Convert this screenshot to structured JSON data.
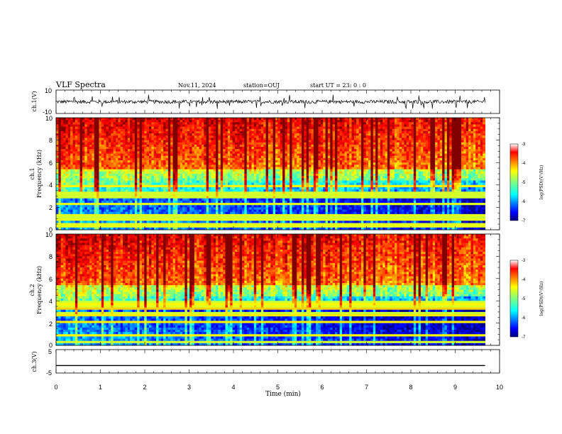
{
  "header": {
    "title": "VLF Spectra",
    "date": "Nov.11, 2024",
    "station": "station=OUJ",
    "start_time": "start  UT =   23: 0  : 0"
  },
  "chart_data": [
    {
      "type": "line",
      "panel": "ch1-waveform",
      "ylabel": "ch.1(V)",
      "ylim": [
        -10,
        10
      ],
      "y_ticks": [
        "10",
        "-10"
      ],
      "xlim": [
        0,
        10
      ],
      "description_values": {
        "baseline_v": 0,
        "typical_amplitude_v": 1.5,
        "max_spike_v": 6
      }
    },
    {
      "type": "heatmap",
      "panel": "ch1-spectrogram",
      "ylabel_top": "ch.1",
      "ylabel": "Frequency (kHz)",
      "ylim": [
        0,
        10
      ],
      "y_ticks": [
        "0",
        "2",
        "4",
        "6",
        "8",
        "10"
      ],
      "xlim": [
        0,
        9.85
      ],
      "colorbar": {
        "label": "log(PSD)(V²/Hz)",
        "range": [
          -7,
          -3
        ],
        "ticks": [
          "-3",
          "-4",
          "-5",
          "-6",
          "-7"
        ]
      }
    },
    {
      "type": "heatmap",
      "panel": "ch2-spectrogram",
      "ylabel_top": "ch.2",
      "ylabel": "Frequency (kHz)",
      "ylim": [
        0,
        10
      ],
      "y_ticks": [
        "0",
        "2",
        "4",
        "6",
        "8",
        "10"
      ],
      "xlim": [
        0,
        9.85
      ],
      "colorbar": {
        "label": "log(PSD)(V²/Hz)",
        "range": [
          -7,
          -3
        ],
        "ticks": [
          "-3",
          "-4",
          "-5",
          "-6",
          "-7"
        ]
      }
    },
    {
      "type": "line",
      "panel": "ch3-waveform",
      "ylabel": "ch.3(V)",
      "ylim": [
        -5,
        5
      ],
      "y_ticks": [
        "5",
        "-5"
      ],
      "xlim": [
        0,
        10
      ],
      "constant_value_v": -1.8
    }
  ],
  "x_axis": {
    "label": "Time (min)",
    "ticks": [
      "0",
      "1",
      "2",
      "3",
      "4",
      "5",
      "6",
      "7",
      "8",
      "9",
      "10"
    ]
  },
  "colors": {
    "background": "#ffffff",
    "frame": "#000000",
    "spectro_low": "#00007f",
    "spectro_high": "#ff0000"
  }
}
